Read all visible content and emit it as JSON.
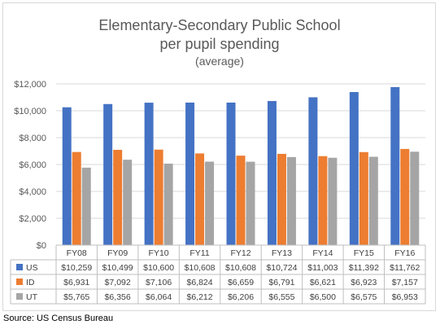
{
  "chart_data": {
    "type": "bar",
    "title_lines": [
      "Elementary-Secondary Public School",
      "per pupil spending",
      "(average)"
    ],
    "categories": [
      "FY08",
      "FY09",
      "FY10",
      "FY11",
      "FY12",
      "FY13",
      "FY14",
      "FY15",
      "FY16"
    ],
    "series": [
      {
        "name": "US",
        "color": "#4472c4",
        "values": [
          10259,
          10499,
          10600,
          10608,
          10608,
          10724,
          11003,
          11392,
          11762
        ],
        "labels": [
          "$10,259",
          "$10,499",
          "$10,600",
          "$10,608",
          "$10,608",
          "$10,724",
          "$11,003",
          "$11,392",
          "$11,762"
        ]
      },
      {
        "name": "ID",
        "color": "#ed7d31",
        "values": [
          6931,
          7092,
          7106,
          6824,
          6659,
          6791,
          6621,
          6923,
          7157
        ],
        "labels": [
          "$6,931",
          "$7,092",
          "$7,106",
          "$6,824",
          "$6,659",
          "$6,791",
          "$6,621",
          "$6,923",
          "$7,157"
        ]
      },
      {
        "name": "UT",
        "color": "#a5a5a5",
        "values": [
          5765,
          6356,
          6064,
          6212,
          6206,
          6555,
          6500,
          6575,
          6953
        ],
        "labels": [
          "$5,765",
          "$6,356",
          "$6,064",
          "$6,212",
          "$6,206",
          "$6,555",
          "$6,500",
          "$6,575",
          "$6,953"
        ]
      }
    ],
    "ylim": [
      0,
      12000
    ],
    "yticks": [
      0,
      2000,
      4000,
      6000,
      8000,
      10000,
      12000
    ],
    "ytick_labels": [
      "$0",
      "$2,000",
      "$4,000",
      "$6,000",
      "$8,000",
      "$10,000",
      "$12,000"
    ],
    "grid": true,
    "legend_placement": "data-table",
    "gridline_color": "#d9d9d9"
  },
  "source_note": "Source: US Census Bureau"
}
